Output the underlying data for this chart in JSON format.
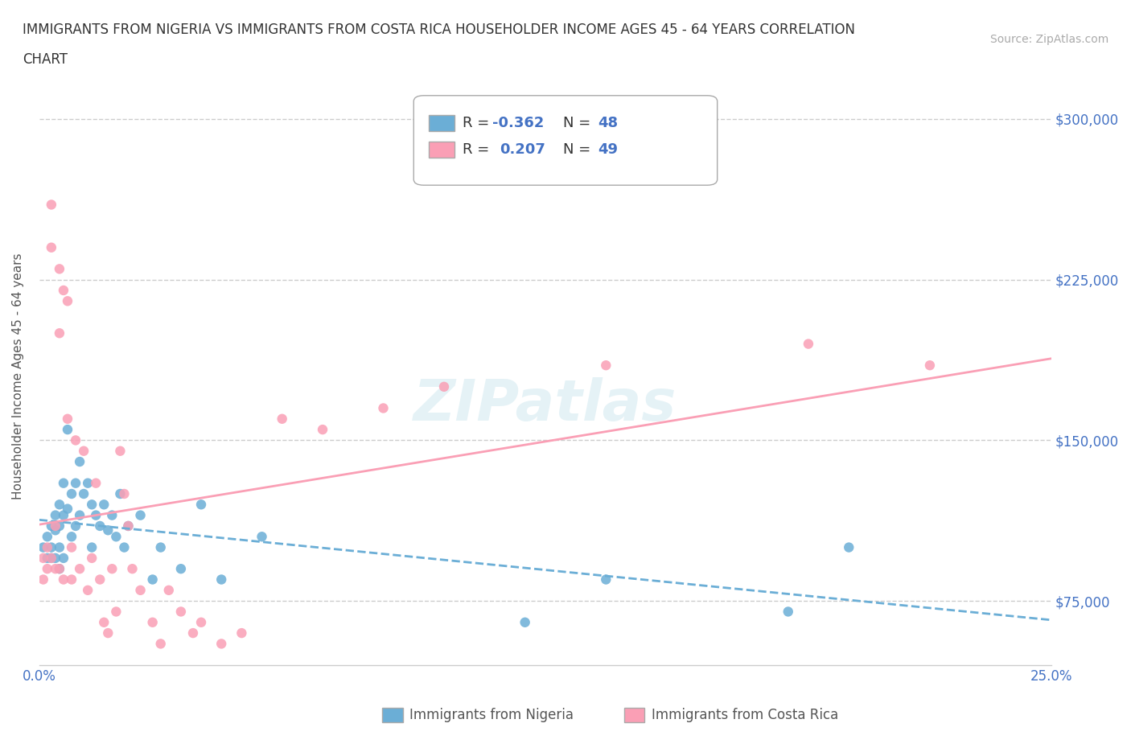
{
  "title_line1": "IMMIGRANTS FROM NIGERIA VS IMMIGRANTS FROM COSTA RICA HOUSEHOLDER INCOME AGES 45 - 64 YEARS CORRELATION",
  "title_line2": "CHART",
  "source": "Source: ZipAtlas.com",
  "ylabel": "Householder Income Ages 45 - 64 years",
  "xlim": [
    0.0,
    0.25
  ],
  "ylim": [
    45000,
    315000
  ],
  "xticks": [
    0.0,
    0.05,
    0.1,
    0.15,
    0.2,
    0.25
  ],
  "ytick_vals": [
    75000,
    150000,
    225000,
    300000
  ],
  "ytick_labels": [
    "$75,000",
    "$150,000",
    "$225,000",
    "$300,000"
  ],
  "nigeria_R": -0.362,
  "nigeria_N": 48,
  "costarica_R": 0.207,
  "costarica_N": 49,
  "nigeria_color": "#6baed6",
  "costarica_color": "#fa9fb5",
  "background_color": "#ffffff",
  "watermark": "ZIPatlas",
  "nigeria_x": [
    0.001,
    0.002,
    0.002,
    0.003,
    0.003,
    0.003,
    0.004,
    0.004,
    0.004,
    0.005,
    0.005,
    0.005,
    0.005,
    0.006,
    0.006,
    0.006,
    0.007,
    0.007,
    0.008,
    0.008,
    0.009,
    0.009,
    0.01,
    0.01,
    0.011,
    0.012,
    0.013,
    0.013,
    0.014,
    0.015,
    0.016,
    0.017,
    0.018,
    0.019,
    0.02,
    0.021,
    0.022,
    0.025,
    0.028,
    0.03,
    0.035,
    0.04,
    0.045,
    0.055,
    0.12,
    0.14,
    0.185,
    0.2
  ],
  "nigeria_y": [
    100000,
    95000,
    105000,
    110000,
    100000,
    95000,
    115000,
    108000,
    95000,
    120000,
    110000,
    100000,
    90000,
    130000,
    115000,
    95000,
    155000,
    118000,
    125000,
    105000,
    130000,
    110000,
    140000,
    115000,
    125000,
    130000,
    120000,
    100000,
    115000,
    110000,
    120000,
    108000,
    115000,
    105000,
    125000,
    100000,
    110000,
    115000,
    85000,
    100000,
    90000,
    120000,
    85000,
    105000,
    65000,
    85000,
    70000,
    100000
  ],
  "costarica_x": [
    0.001,
    0.001,
    0.002,
    0.002,
    0.003,
    0.003,
    0.003,
    0.004,
    0.004,
    0.005,
    0.005,
    0.005,
    0.006,
    0.006,
    0.007,
    0.007,
    0.008,
    0.008,
    0.009,
    0.01,
    0.011,
    0.012,
    0.013,
    0.014,
    0.015,
    0.016,
    0.017,
    0.018,
    0.019,
    0.02,
    0.021,
    0.022,
    0.023,
    0.025,
    0.028,
    0.03,
    0.032,
    0.035,
    0.038,
    0.04,
    0.045,
    0.05,
    0.06,
    0.07,
    0.085,
    0.1,
    0.14,
    0.19,
    0.22
  ],
  "costarica_y": [
    95000,
    85000,
    100000,
    90000,
    260000,
    240000,
    95000,
    110000,
    90000,
    230000,
    200000,
    90000,
    220000,
    85000,
    215000,
    160000,
    100000,
    85000,
    150000,
    90000,
    145000,
    80000,
    95000,
    130000,
    85000,
    65000,
    60000,
    90000,
    70000,
    145000,
    125000,
    110000,
    90000,
    80000,
    65000,
    55000,
    80000,
    70000,
    60000,
    65000,
    55000,
    60000,
    160000,
    155000,
    165000,
    175000,
    185000,
    195000,
    185000
  ]
}
